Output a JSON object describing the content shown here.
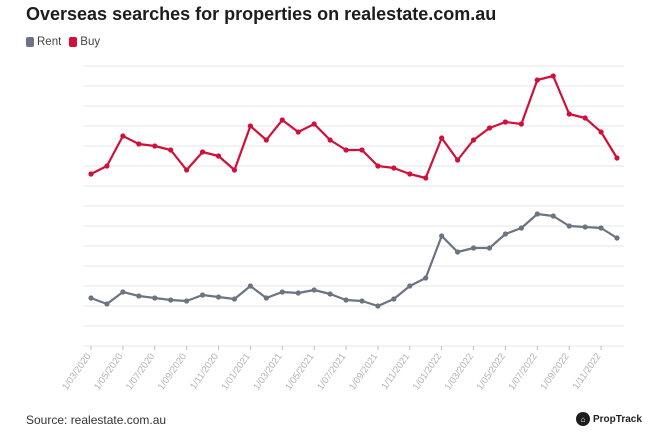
{
  "header": {
    "title": "Overseas searches for properties on realestate.com.au"
  },
  "legend": {
    "rent_label": "Rent",
    "buy_label": "Buy"
  },
  "footer": {
    "source": "Source: realestate.com.au",
    "brand": "PropTrack"
  },
  "colors": {
    "rent": "#6b7482",
    "buy": "#d0103a",
    "grid": "#e6e6e6",
    "tick": "#bbbbbb"
  },
  "chart_data": {
    "type": "line",
    "title": "Overseas searches for properties on realestate.com.au",
    "xlabel": "",
    "ylabel": "",
    "ylim": [
      0,
      14
    ],
    "grid": true,
    "legend_position": "top-left",
    "tick_labels": [
      "1/03/2020",
      "1/05/2020",
      "1/07/2020",
      "1/09/2020",
      "1/11/2020",
      "1/01/2021",
      "1/03/2021",
      "1/05/2021",
      "1/07/2021",
      "1/09/2021",
      "1/11/2021",
      "1/01/2022",
      "1/03/2022",
      "1/05/2022",
      "1/07/2022",
      "1/09/2022",
      "1/11/2022"
    ],
    "series": [
      {
        "name": "Buy",
        "values": [
          8.6,
          9.0,
          10.5,
          10.1,
          10.0,
          9.8,
          8.8,
          9.7,
          9.5,
          8.8,
          11.0,
          10.3,
          11.3,
          10.7,
          11.1,
          10.3,
          9.8,
          9.8,
          9.0,
          8.9,
          8.6,
          8.4,
          10.4,
          9.3,
          10.3,
          10.9,
          11.2,
          11.1,
          13.3,
          13.5,
          11.6,
          11.4,
          10.7,
          9.4
        ]
      },
      {
        "name": "Rent",
        "values": [
          2.4,
          2.1,
          2.7,
          2.5,
          2.4,
          2.3,
          2.25,
          2.55,
          2.45,
          2.35,
          3.0,
          2.4,
          2.7,
          2.65,
          2.8,
          2.6,
          2.3,
          2.25,
          2.0,
          2.35,
          3.0,
          3.4,
          5.5,
          4.7,
          4.9,
          4.9,
          5.6,
          5.9,
          6.6,
          6.5,
          6.0,
          5.95,
          5.9,
          5.4
        ]
      }
    ]
  }
}
